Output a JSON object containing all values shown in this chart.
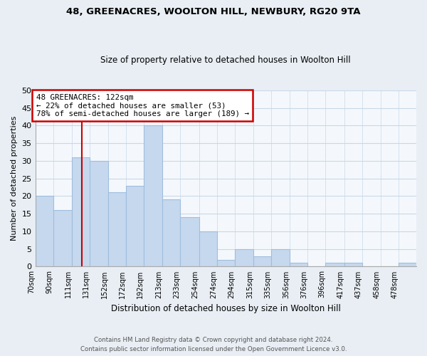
{
  "title": "48, GREENACRES, WOOLTON HILL, NEWBURY, RG20 9TA",
  "subtitle": "Size of property relative to detached houses in Woolton Hill",
  "xlabel": "Distribution of detached houses by size in Woolton Hill",
  "ylabel": "Number of detached properties",
  "footnote1": "Contains HM Land Registry data © Crown copyright and database right 2024.",
  "footnote2": "Contains public sector information licensed under the Open Government Licence v3.0.",
  "bins": [
    70,
    90,
    111,
    131,
    152,
    172,
    192,
    213,
    233,
    254,
    274,
    294,
    315,
    335,
    356,
    376,
    396,
    417,
    437,
    458,
    478
  ],
  "bar_labels": [
    "70sqm",
    "90sqm",
    "111sqm",
    "131sqm",
    "152sqm",
    "172sqm",
    "192sqm",
    "213sqm",
    "233sqm",
    "254sqm",
    "274sqm",
    "294sqm",
    "315sqm",
    "335sqm",
    "356sqm",
    "376sqm",
    "396sqm",
    "417sqm",
    "437sqm",
    "458sqm",
    "478sqm"
  ],
  "values": [
    20,
    16,
    31,
    30,
    21,
    23,
    40,
    19,
    14,
    10,
    2,
    5,
    3,
    5,
    1,
    0,
    1,
    1,
    0,
    0,
    1
  ],
  "bar_color": "#c5d8ee",
  "bar_edge_color": "#a0bedd",
  "property_line_x": 122,
  "annotation_text": "48 GREENACRES: 122sqm\n← 22% of detached houses are smaller (53)\n78% of semi-detached houses are larger (189) →",
  "annotation_box_color": "white",
  "annotation_box_edge_color": "#cc0000",
  "line_color": "#cc0000",
  "ylim": [
    0,
    50
  ],
  "yticks": [
    0,
    5,
    10,
    15,
    20,
    25,
    30,
    35,
    40,
    45,
    50
  ],
  "bg_color": "#e8eef4",
  "plot_bg_color": "#f4f8fc",
  "grid_color": "#c8d8e8"
}
